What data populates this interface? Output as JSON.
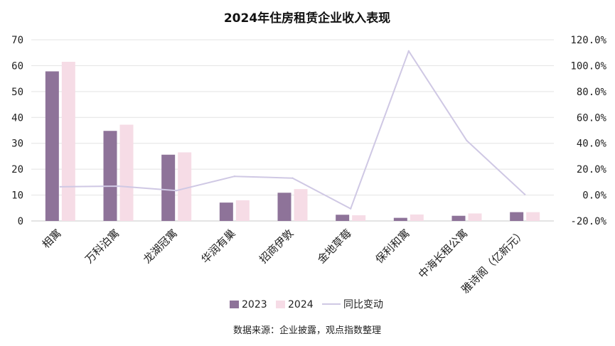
{
  "chart_data": {
    "type": "bar",
    "title": "2024年住房租赁企业收入表现",
    "source": "数据来源：企业披露，观点指数整理",
    "categories": [
      "相寓",
      "万科泊寓",
      "龙湖冠寓",
      "华润有巢",
      "招商伊敦",
      "金地草莓",
      "保利和寓",
      "中海长租公寓",
      "雅诗阁（亿新元）"
    ],
    "series": [
      {
        "name": "2023",
        "type": "bar",
        "axis": "left",
        "color": "#8e7399",
        "values": [
          57.8,
          34.8,
          25.6,
          7.1,
          10.9,
          2.4,
          1.2,
          2.0,
          3.4
        ]
      },
      {
        "name": "2024",
        "type": "bar",
        "axis": "left",
        "color": "#f6dce6",
        "values": [
          61.5,
          37.2,
          26.5,
          8.0,
          12.3,
          2.2,
          2.5,
          2.9,
          3.4
        ]
      },
      {
        "name": "同比变动",
        "type": "line",
        "axis": "right",
        "color": "#cfc8e4",
        "values": [
          6.4,
          6.9,
          3.5,
          14.5,
          13.1,
          -10.5,
          111.3,
          42.1,
          0.5
        ]
      }
    ],
    "left_axis": {
      "min": 0,
      "max": 70,
      "ticks": [
        "0",
        "10",
        "20",
        "30",
        "40",
        "50",
        "60",
        "70"
      ]
    },
    "right_axis": {
      "min": -20,
      "max": 120,
      "ticks": [
        "-20.0%",
        "0.0%",
        "20.0%",
        "40.0%",
        "60.0%",
        "80.0%",
        "100.0%",
        "120.0%"
      ]
    },
    "grid": true,
    "legend_position": "bottom"
  }
}
